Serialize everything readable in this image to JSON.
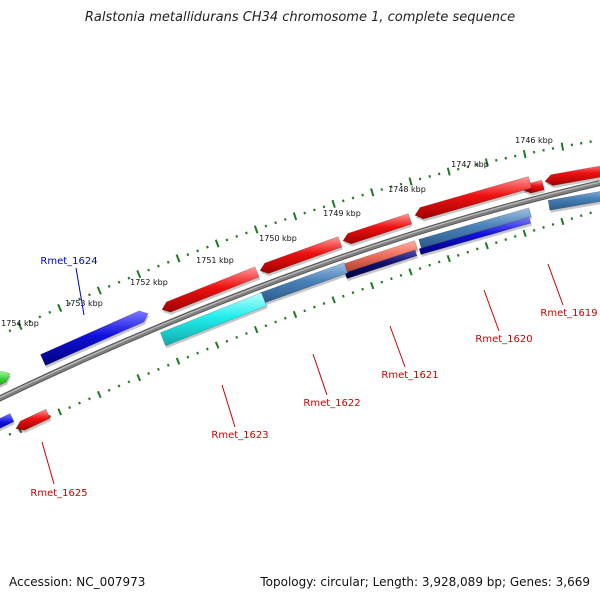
{
  "title": "Ralstonia metallidurans CH34 chromosome 1, complete sequence",
  "footer": {
    "accession": "Accession: NC_007973",
    "summary": "Topology: circular; Length: 3,928,089 bp; Genes: 3,669"
  },
  "colors": {
    "backbone": "#808080",
    "ruler": "#1e7a1e",
    "label_reverse": "#cc0000",
    "label_forward": "#0000cc",
    "gene_red": "#ee1111",
    "gene_blue": "#1010dd",
    "gene_cyan": "#22eeee",
    "gene_steel": "#4a82b8",
    "gene_salmon": "#f07060",
    "gene_navy": "#101070",
    "gene_green": "#33cc33"
  },
  "ticks": [
    {
      "label": "1746 kbp"
    },
    {
      "label": "1747 kbp"
    },
    {
      "label": "1748 kbp"
    },
    {
      "label": "1749 kbp"
    },
    {
      "label": "1750 kbp"
    },
    {
      "label": "1751 kbp"
    },
    {
      "label": "1752 kbp"
    },
    {
      "label": "1753 kbp"
    },
    {
      "label": "1754 kbp"
    }
  ],
  "gene_labels": [
    {
      "name": "Rmet_1619",
      "strand": "reverse"
    },
    {
      "name": "Rmet_1620",
      "strand": "reverse"
    },
    {
      "name": "Rmet_1621",
      "strand": "reverse"
    },
    {
      "name": "Rmet_1622",
      "strand": "reverse"
    },
    {
      "name": "Rmet_1623",
      "strand": "reverse"
    },
    {
      "name": "Rmet_1624",
      "strand": "forward"
    },
    {
      "name": "Rmet_1625",
      "strand": "reverse"
    }
  ]
}
